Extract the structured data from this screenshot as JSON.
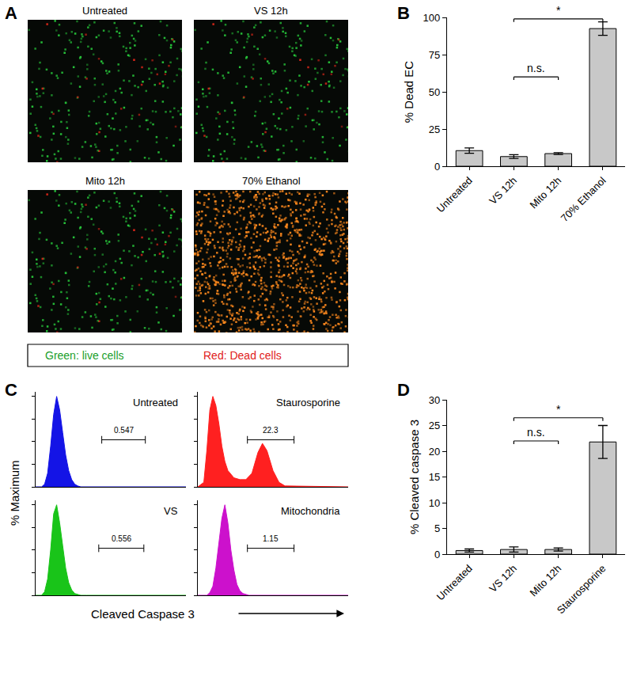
{
  "chart_data": [
    {
      "panel": "A",
      "type": "image",
      "images": [
        {
          "title": "Untreated",
          "colors": [
            "#27c43a",
            "#e0281a"
          ]
        },
        {
          "title": "VS 12h",
          "colors": [
            "#27c43a",
            "#e0281a"
          ]
        },
        {
          "title": "Mito 12h",
          "colors": [
            "#27c43a",
            "#e0281a"
          ]
        },
        {
          "title": "70% Ethanol",
          "colors": [
            "#ff8a1e"
          ]
        }
      ],
      "key": [
        {
          "text": "Green: live cells",
          "color": "#1a9e2a"
        },
        {
          "text": "Red: Dead cells",
          "color": "#e0201a"
        }
      ]
    },
    {
      "panel": "B",
      "type": "bar",
      "categories": [
        "Untreated",
        "VS 12h",
        "Mito 12h",
        "70% Ethanol"
      ],
      "values": [
        10.5,
        6.5,
        8.5,
        92.5
      ],
      "errors": [
        1.8,
        1.3,
        0.6,
        4.5
      ],
      "color": "#c8c8c8",
      "ylabel": "% Dead EC",
      "ylim": [
        0,
        100
      ],
      "yticks": [
        0,
        25,
        50,
        75,
        100
      ],
      "annotations": [
        {
          "text": "n.s.",
          "from": "VS 12h",
          "to": "Mito 12h",
          "y": 60
        },
        {
          "text": "*",
          "from": "VS 12h",
          "to": "70% Ethanol",
          "y": 99
        }
      ]
    },
    {
      "panel": "C",
      "type": "area",
      "ylabel": "% Maximum",
      "xlabel": "Cleaved Caspase 3",
      "xlim": [
        0,
        100
      ],
      "ylim": [
        0,
        105
      ],
      "yticks": [
        0,
        25,
        50,
        75,
        100
      ],
      "tick_labels": false,
      "series": [
        {
          "name": "Untreated",
          "color": "#1414e6",
          "x": [
            0,
            4,
            6,
            8,
            10,
            12,
            14,
            16,
            18,
            20,
            22,
            24,
            26,
            28,
            30,
            34,
            40,
            100
          ],
          "values": [
            0,
            0,
            3,
            15,
            45,
            80,
            100,
            85,
            60,
            35,
            18,
            8,
            3,
            1,
            0,
            0,
            0,
            0
          ],
          "gate": {
            "value": 0.547,
            "x0": 44,
            "x1": 73,
            "y": 52
          }
        },
        {
          "name": "Staurosporine",
          "color": "#ff2020",
          "x": [
            0,
            4,
            6,
            8,
            10,
            12,
            14,
            16,
            18,
            20,
            24,
            28,
            32,
            36,
            40,
            43,
            46,
            50,
            54,
            58,
            100
          ],
          "values": [
            0,
            5,
            40,
            85,
            100,
            90,
            70,
            45,
            28,
            18,
            10,
            8,
            8,
            15,
            38,
            48,
            40,
            18,
            5,
            1,
            0
          ],
          "gate": {
            "value": 22.3,
            "x0": 33,
            "x1": 64,
            "y": 52
          }
        },
        {
          "name": "VS",
          "color": "#19c419",
          "x": [
            0,
            4,
            6,
            8,
            10,
            12,
            14,
            16,
            18,
            20,
            22,
            24,
            26,
            28,
            30,
            34,
            40,
            100
          ],
          "values": [
            0,
            0,
            4,
            18,
            50,
            90,
            100,
            80,
            55,
            30,
            14,
            6,
            2,
            1,
            0,
            0,
            0,
            0
          ],
          "gate": {
            "value": 0.556,
            "x0": 42,
            "x1": 72,
            "y": 52
          }
        },
        {
          "name": "Mitochondria",
          "color": "#cc11cc",
          "x": [
            0,
            4,
            6,
            8,
            10,
            12,
            14,
            16,
            18,
            20,
            22,
            24,
            26,
            28,
            30,
            34,
            40,
            100
          ],
          "values": [
            0,
            0,
            0,
            3,
            10,
            30,
            60,
            85,
            100,
            80,
            50,
            28,
            12,
            5,
            2,
            0,
            0,
            0
          ],
          "gate": {
            "value": 1.15,
            "x0": 33,
            "x1": 64,
            "y": 52
          }
        }
      ]
    },
    {
      "panel": "D",
      "type": "bar",
      "categories": [
        "Untreated",
        "VS 12h",
        "Mito 12h",
        "Staurosporine"
      ],
      "values": [
        0.7,
        0.9,
        0.9,
        21.8
      ],
      "errors": [
        0.3,
        0.5,
        0.3,
        3.2
      ],
      "color": "#c8c8c8",
      "ylabel": "% Cleaved caspase 3",
      "ylim": [
        0,
        30
      ],
      "yticks": [
        0,
        5,
        10,
        15,
        20,
        25,
        30
      ],
      "annotations": [
        {
          "text": "n.s.",
          "from": "VS 12h",
          "to": "Mito 12h",
          "y": 22
        },
        {
          "text": "*",
          "from": "VS 12h",
          "to": "Staurosporine",
          "y": 26.5
        }
      ]
    }
  ]
}
